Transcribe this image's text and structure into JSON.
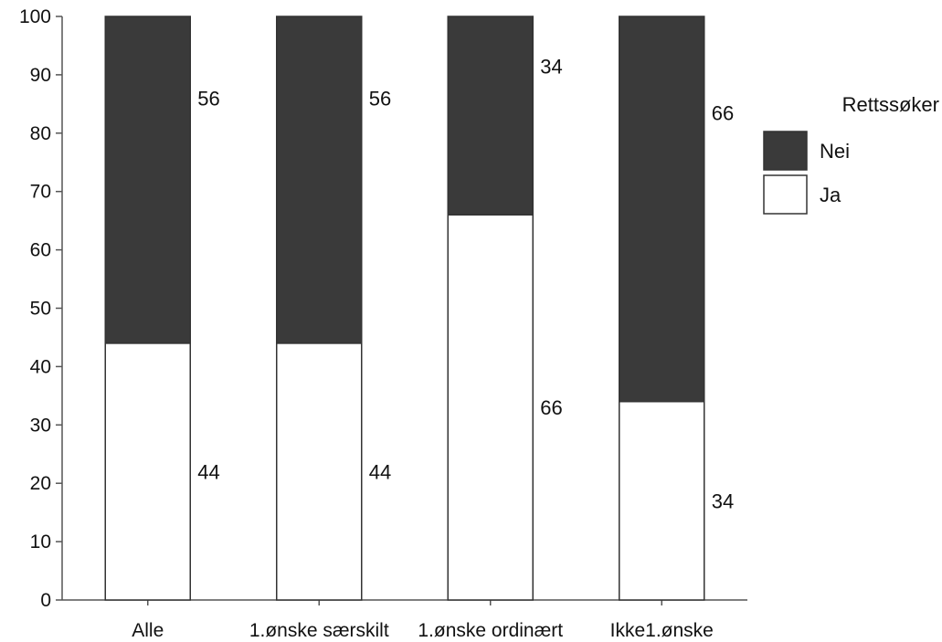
{
  "chart_data": {
    "type": "bar",
    "stacked": true,
    "title": "",
    "xlabel": "",
    "ylabel": "",
    "ylim": [
      0,
      100
    ],
    "yticks": [
      0,
      10,
      20,
      30,
      40,
      50,
      60,
      70,
      80,
      90,
      100
    ],
    "categories": [
      "Alle",
      "1.ønske særskilt",
      "1.ønske ordinært",
      "Ikke1.ønske"
    ],
    "series": [
      {
        "name": "Ja",
        "values": [
          44,
          44,
          66,
          34
        ],
        "color": "#ffffff"
      },
      {
        "name": "Nei",
        "values": [
          56,
          56,
          34,
          66
        ],
        "color": "#3a3a3a"
      }
    ],
    "legend": {
      "title": "Rettssøker",
      "position": "right",
      "entries": [
        "Nei",
        "Ja"
      ]
    },
    "grid": false
  }
}
